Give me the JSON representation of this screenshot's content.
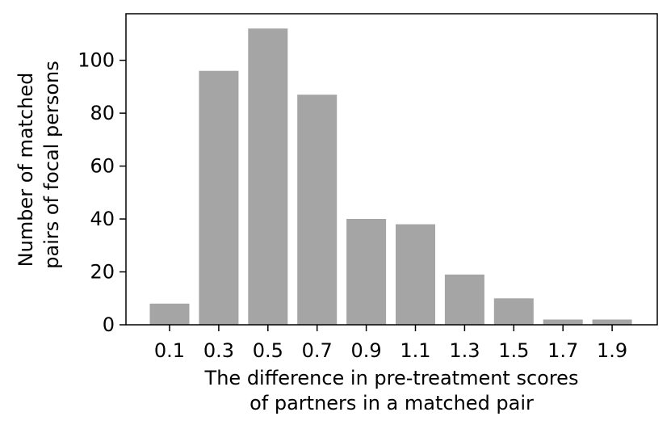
{
  "chart_data": {
    "type": "bar",
    "categories": [
      "0.1",
      "0.3",
      "0.5",
      "0.7",
      "0.9",
      "1.1",
      "1.3",
      "1.5",
      "1.7",
      "1.9"
    ],
    "values": [
      8,
      96,
      112,
      87,
      40,
      38,
      19,
      10,
      2,
      2
    ],
    "xlabel": [
      "The difference in pre-treatment scores",
      "of partners in a matched pair"
    ],
    "ylabel": [
      "Number of matched",
      "pairs of focal persons"
    ],
    "yticks": [
      0,
      20,
      40,
      60,
      80,
      100
    ],
    "ylim": [
      0,
      117.6
    ],
    "grid": false,
    "legend": "none",
    "colors": {
      "bar": "#a5a5a5",
      "axis": "#000000",
      "background": "#ffffff"
    }
  }
}
